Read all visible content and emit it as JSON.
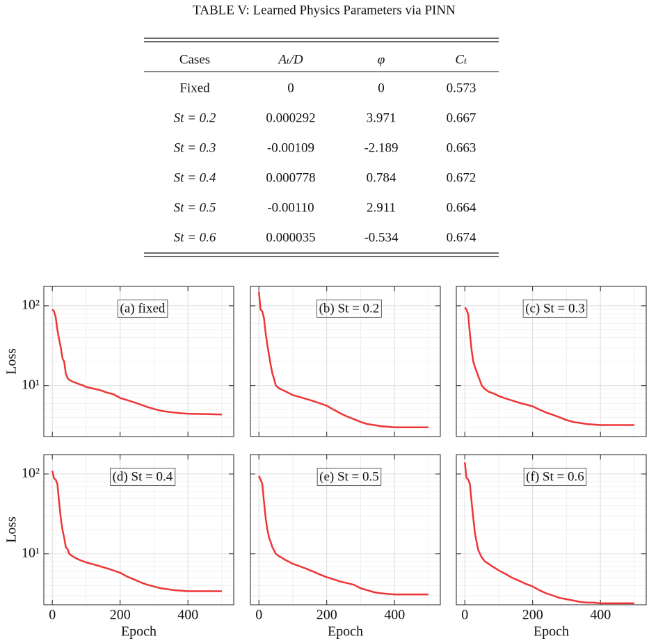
{
  "table": {
    "title": "TABLE V: Learned Physics Parameters via PINN",
    "header": [
      "Cases",
      "Aₜ/D",
      "φ",
      "Cₜ"
    ],
    "rows": [
      [
        "Fixed",
        "0",
        "0",
        "0.573"
      ],
      [
        "St = 0.2",
        "0.000292",
        "3.971",
        "0.667"
      ],
      [
        "St = 0.3",
        "-0.00109",
        "-2.189",
        "0.663"
      ],
      [
        "St = 0.4",
        "0.000778",
        "0.784",
        "0.672"
      ],
      [
        "St = 0.5",
        "-0.00110",
        "2.911",
        "0.664"
      ],
      [
        "St = 0.6",
        "0.000035",
        "-0.534",
        "0.674"
      ]
    ]
  },
  "chart_data": [
    {
      "type": "line",
      "title": "(a) fixed",
      "ylabel": "Loss",
      "yscale": "log",
      "grid": true,
      "x": [
        0,
        5,
        10,
        15,
        20,
        25,
        30,
        35,
        40,
        45,
        50,
        60,
        70,
        80,
        90,
        100,
        120,
        140,
        160,
        180,
        200,
        220,
        240,
        260,
        280,
        300,
        320,
        340,
        360,
        380,
        400,
        450,
        500
      ],
      "series": [
        {
          "color": "#ee3535",
          "values": [
            90,
            85,
            72,
            50,
            38,
            30,
            22,
            20,
            14,
            12.5,
            11.8,
            11.2,
            10.8,
            10.4,
            10.1,
            9.6,
            9.2,
            8.8,
            8.2,
            7.8,
            7.0,
            6.6,
            6.2,
            5.8,
            5.4,
            5.1,
            4.85,
            4.7,
            4.6,
            4.5,
            4.45,
            4.4,
            4.35
          ]
        }
      ],
      "xlim": [
        -25,
        535
      ],
      "ylim": [
        2.3,
        175
      ],
      "xticks": [
        0,
        200,
        400
      ],
      "xminorticks": [
        100,
        300,
        500
      ],
      "yticks": [
        {
          "value": 10,
          "label": "10¹"
        },
        {
          "value": 100,
          "label": "10²"
        }
      ],
      "yminorticks": [
        3,
        4,
        5,
        6,
        7,
        8,
        9,
        20,
        30,
        40,
        50,
        60,
        70,
        80,
        90
      ]
    },
    {
      "type": "line",
      "title": "(b) St = 0.2",
      "yscale": "log",
      "grid": true,
      "x": [
        0,
        5,
        10,
        15,
        20,
        25,
        30,
        35,
        40,
        45,
        50,
        60,
        70,
        80,
        90,
        100,
        120,
        140,
        160,
        180,
        200,
        220,
        240,
        260,
        280,
        300,
        320,
        340,
        360,
        380,
        400,
        450,
        500
      ],
      "series": [
        {
          "color": "#ee3535",
          "values": [
            150,
            90,
            85,
            70,
            45,
            32,
            24,
            18,
            14,
            12,
            10,
            9.2,
            8.8,
            8.4,
            8.0,
            7.6,
            7.2,
            6.8,
            6.4,
            6.0,
            5.6,
            5.0,
            4.5,
            4.1,
            3.8,
            3.5,
            3.3,
            3.2,
            3.1,
            3.05,
            3.0,
            3.0,
            3.0
          ]
        }
      ],
      "xlim": [
        -25,
        535
      ],
      "ylim": [
        2.3,
        175
      ],
      "xticks": [
        0,
        200,
        400
      ],
      "xminorticks": [
        100,
        300,
        500
      ],
      "yticks": [
        10,
        100
      ],
      "yminorticks": [
        3,
        4,
        5,
        6,
        7,
        8,
        9,
        20,
        30,
        40,
        50,
        60,
        70,
        80,
        90
      ]
    },
    {
      "type": "line",
      "title": "(c) St = 0.3",
      "yscale": "log",
      "grid": true,
      "x": [
        0,
        5,
        10,
        15,
        20,
        25,
        30,
        35,
        40,
        45,
        50,
        60,
        70,
        80,
        90,
        100,
        120,
        140,
        160,
        180,
        200,
        220,
        240,
        260,
        280,
        300,
        320,
        340,
        360,
        380,
        400,
        450,
        500
      ],
      "series": [
        {
          "color": "#ee3535",
          "values": [
            95,
            90,
            78,
            45,
            28,
            20,
            17,
            15,
            13,
            11.5,
            10,
            9,
            8.4,
            8.1,
            7.8,
            7.4,
            6.9,
            6.5,
            6.1,
            5.8,
            5.5,
            5.0,
            4.6,
            4.3,
            4.0,
            3.7,
            3.5,
            3.4,
            3.3,
            3.25,
            3.2,
            3.2,
            3.2
          ]
        }
      ],
      "xlim": [
        -25,
        535
      ],
      "ylim": [
        2.3,
        175
      ],
      "xticks": [
        0,
        200,
        400
      ],
      "xminorticks": [
        100,
        300,
        500
      ],
      "yticks": [
        10,
        100
      ],
      "yminorticks": [
        3,
        4,
        5,
        6,
        7,
        8,
        9,
        20,
        30,
        40,
        50,
        60,
        70,
        80,
        90
      ]
    },
    {
      "type": "line",
      "title": "(d) St = 0.4",
      "ylabel": "Loss",
      "xlabel": "Epoch",
      "yscale": "log",
      "grid": true,
      "x": [
        0,
        5,
        10,
        15,
        20,
        25,
        30,
        35,
        40,
        45,
        50,
        60,
        70,
        80,
        90,
        100,
        120,
        140,
        160,
        180,
        200,
        220,
        240,
        260,
        280,
        300,
        320,
        340,
        360,
        380,
        400,
        450,
        500
      ],
      "series": [
        {
          "color": "#ee3535",
          "values": [
            110,
            88,
            85,
            75,
            45,
            28,
            20,
            16,
            12,
            11.5,
            10,
            9.3,
            8.8,
            8.4,
            8.1,
            7.8,
            7.4,
            7.0,
            6.6,
            6.2,
            5.8,
            5.2,
            4.8,
            4.4,
            4.1,
            3.9,
            3.7,
            3.6,
            3.5,
            3.45,
            3.4,
            3.4,
            3.4
          ]
        }
      ],
      "xlim": [
        -25,
        535
      ],
      "ylim": [
        2.3,
        175
      ],
      "xticks": [
        0,
        200,
        400
      ],
      "xminorticks": [
        100,
        300,
        500
      ],
      "yticks": [
        {
          "value": 10,
          "label": "10¹"
        },
        {
          "value": 100,
          "label": "10²"
        }
      ],
      "yminorticks": [
        3,
        4,
        5,
        6,
        7,
        8,
        9,
        20,
        30,
        40,
        50,
        60,
        70,
        80,
        90
      ]
    },
    {
      "type": "line",
      "title": "(e) St = 0.5",
      "xlabel": "Epoch",
      "yscale": "log",
      "grid": true,
      "x": [
        0,
        5,
        10,
        15,
        20,
        25,
        30,
        35,
        40,
        45,
        50,
        60,
        70,
        80,
        90,
        100,
        120,
        140,
        160,
        180,
        200,
        220,
        240,
        260,
        280,
        300,
        320,
        340,
        360,
        380,
        400,
        450,
        500
      ],
      "series": [
        {
          "color": "#ee3535",
          "values": [
            95,
            85,
            75,
            45,
            28,
            20,
            16,
            14,
            12,
            11,
            10,
            9.3,
            8.8,
            8.3,
            7.9,
            7.5,
            7.0,
            6.5,
            6.0,
            5.5,
            5.1,
            4.8,
            4.5,
            4.3,
            4.1,
            3.7,
            3.5,
            3.3,
            3.2,
            3.15,
            3.1,
            3.1,
            3.1
          ]
        }
      ],
      "xlim": [
        -25,
        535
      ],
      "ylim": [
        2.3,
        175
      ],
      "xticks": [
        0,
        200,
        400
      ],
      "xminorticks": [
        100,
        300,
        500
      ],
      "yticks": [
        10,
        100
      ],
      "yminorticks": [
        3,
        4,
        5,
        6,
        7,
        8,
        9,
        20,
        30,
        40,
        50,
        60,
        70,
        80,
        90
      ]
    },
    {
      "type": "line",
      "title": "(f) St = 0.6",
      "xlabel": "Epoch",
      "yscale": "log",
      "grid": true,
      "x": [
        0,
        5,
        10,
        15,
        20,
        25,
        30,
        35,
        40,
        45,
        50,
        60,
        70,
        80,
        90,
        100,
        120,
        140,
        160,
        180,
        200,
        220,
        240,
        260,
        280,
        300,
        320,
        340,
        360,
        380,
        400,
        450,
        500
      ],
      "series": [
        {
          "color": "#ee3535",
          "values": [
            140,
            90,
            85,
            75,
            45,
            28,
            18,
            14,
            11,
            10,
            9,
            8,
            7.5,
            7,
            6.6,
            6.2,
            5.6,
            5.0,
            4.6,
            4.2,
            3.9,
            3.5,
            3.2,
            3.0,
            2.8,
            2.7,
            2.6,
            2.5,
            2.45,
            2.45,
            2.4,
            2.4,
            2.4
          ]
        }
      ],
      "xlim": [
        -25,
        535
      ],
      "ylim": [
        2.3,
        175
      ],
      "xticks": [
        0,
        200,
        400
      ],
      "xminorticks": [
        100,
        300,
        500
      ],
      "yticks": [
        10,
        100
      ],
      "yminorticks": [
        3,
        4,
        5,
        6,
        7,
        8,
        9,
        20,
        30,
        40,
        50,
        60,
        70,
        80,
        90
      ]
    }
  ]
}
